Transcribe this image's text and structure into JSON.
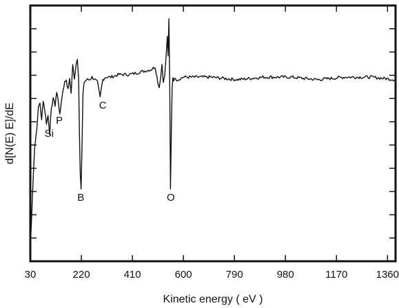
{
  "chart_data": {
    "type": "line",
    "xlabel": "Kinetic energy ( eV )",
    "ylabel": "d[N(E) E]/dE",
    "xlim": [
      30,
      1390
    ],
    "ylim": [
      0,
      100
    ],
    "x_ticks": [
      30,
      220,
      410,
      600,
      790,
      980,
      1170,
      1360
    ],
    "y_ticks_labeled": false,
    "grid": false,
    "legend": "none",
    "line_color": "#111111",
    "series": [
      {
        "x": [
          30,
          34,
          38,
          42,
          46,
          50,
          55,
          60,
          66,
          72,
          78,
          84,
          90,
          96,
          102,
          108,
          115,
          122,
          128,
          134,
          140,
          146,
          152,
          158,
          164,
          170,
          176,
          182,
          188,
          194,
          200,
          205,
          210,
          213,
          216,
          219,
          222,
          226,
          230,
          240,
          250,
          260,
          270,
          280,
          285,
          290,
          295,
          300,
          310,
          330,
          360,
          400,
          440,
          480,
          495,
          505,
          510,
          515,
          520,
          525,
          530,
          535,
          540,
          543,
          546,
          549,
          552,
          555,
          558,
          561,
          564,
          567,
          570,
          575,
          580,
          600,
          700,
          800,
          900,
          1000,
          1100,
          1200,
          1300,
          1390
        ],
        "y": [
          6,
          15,
          26,
          36,
          44,
          48,
          53,
          60,
          62,
          55,
          63,
          59,
          54,
          57,
          50,
          59,
          64,
          61,
          66,
          63,
          57,
          63,
          67,
          70,
          71,
          67,
          71,
          66,
          77,
          71,
          77,
          79,
          72,
          50,
          34,
          28,
          42,
          65,
          70,
          71,
          71,
          72,
          71,
          70,
          67,
          64,
          68,
          71,
          72,
          72,
          73,
          73,
          74,
          75,
          76,
          70,
          68,
          72,
          77,
          70,
          73,
          79,
          88,
          80,
          95,
          69,
          28,
          50,
          68,
          72,
          71,
          71,
          72,
          71,
          71,
          72,
          72,
          71,
          72,
          72,
          71,
          72,
          72,
          71
        ]
      }
    ],
    "annotations": [
      {
        "text": "Si",
        "x": 100,
        "y": 53
      },
      {
        "text": "P",
        "x": 138,
        "y": 58
      },
      {
        "text": "B",
        "x": 218,
        "y": 28
      },
      {
        "text": "C",
        "x": 300,
        "y": 64
      },
      {
        "text": "O",
        "x": 553,
        "y": 28
      }
    ]
  }
}
